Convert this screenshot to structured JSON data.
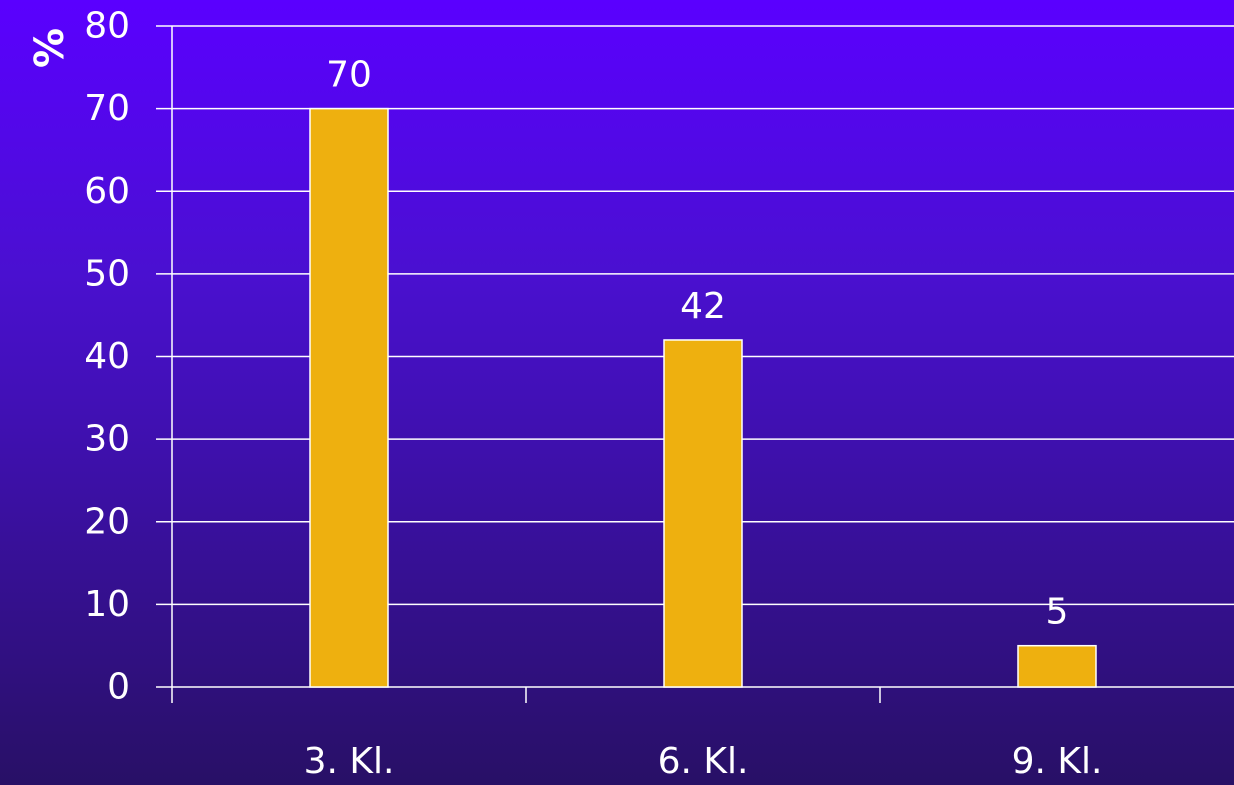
{
  "chart_data": {
    "type": "bar",
    "ylabel": "%",
    "categories": [
      "3. Kl.",
      "6. Kl.",
      "9. Kl."
    ],
    "values": [
      70,
      42,
      5
    ],
    "data_labels": [
      "70",
      "42",
      "5"
    ],
    "ylim": [
      0,
      80
    ],
    "yticks": [
      0,
      10,
      20,
      30,
      40,
      50,
      60,
      70,
      80
    ],
    "grid": true,
    "legend": "none",
    "colors": {
      "bar": "#eeb00f",
      "bar_border": "#ffffff",
      "grid": "#ffffff",
      "axis": "#ffffff",
      "text": "#ffffff"
    }
  }
}
